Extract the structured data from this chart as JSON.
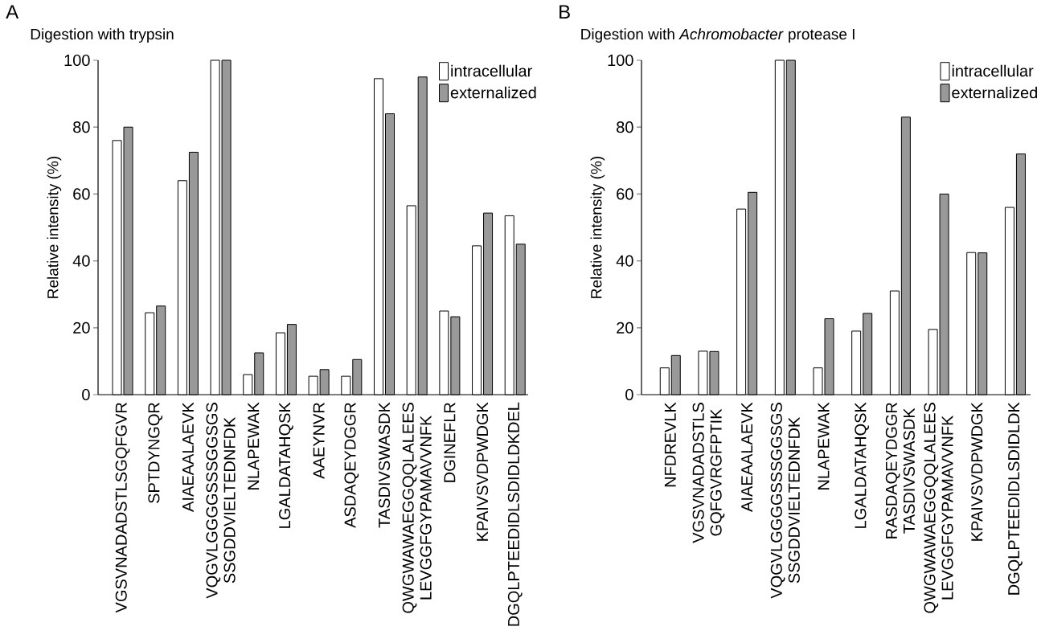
{
  "chart_data": [
    {
      "type": "bar",
      "annotations": [
        "A"
      ],
      "title": "Digestion with trypsin",
      "ylabel": "Relative intensity (%)",
      "categories": [
        "VGSVNADADSTLSGQFGVR",
        "SPTDYNGQR",
        "AIAEAALAEVK",
        "VQGVLGGGGSSSGGSGS SSGDDVIELTEDNFDK",
        "NLAPEWAK",
        "LGALDATAHQSK",
        "AAEYNVR",
        "ASDAQEYDGGR",
        "TASDIVSWASDK",
        "QWGWAWAEGGQQLALEES LEVGGFGYPAMAVVNFK",
        "DGINEFLR",
        "KPAIVSVDPWDGK",
        "DGQLPTEEDIDLSDIDLDKDEL"
      ],
      "series": [
        {
          "name": "intracellular",
          "color": "#ffffff",
          "values": [
            76,
            24.5,
            64,
            100,
            6,
            18.5,
            5.5,
            5.5,
            94.5,
            56.5,
            25,
            44.5,
            53.5
          ]
        },
        {
          "name": "externalized",
          "color": "#999999",
          "values": [
            80,
            26.5,
            72.5,
            100,
            12.5,
            21,
            7.5,
            10.5,
            84,
            95,
            23.3,
            54.3,
            45
          ]
        }
      ],
      "ylim": [
        0,
        100
      ],
      "yticks": [
        0,
        20,
        40,
        60,
        80,
        100
      ],
      "legend": "top right"
    },
    {
      "type": "bar",
      "annotations": [
        "B"
      ],
      "title": "Digestion with *Achromobacter* protease I",
      "ylabel": "Relative intensity (%)",
      "categories": [
        "NFDREVLK",
        "VGSVNADADSTLS GQFGVRGFPTIK",
        "AIAEAALAEVK",
        "VQGVLGGGGSSSGGSGS SSGDDVIELTEDNFDK",
        "NLAPEWAK",
        "LGALDATAHQSK",
        "RASDAQEYDGGR TASDIVSWASDK",
        "QWGWAWAEGGQQLALEES LEVGGFGYPAMAVVNFK",
        "KPAIVSVDPWDGK",
        "DGQLPTEEDIDLSDIDLDK"
      ],
      "series": [
        {
          "name": "intracellular",
          "color": "#ffffff",
          "values": [
            8,
            13,
            55.5,
            100,
            8,
            19,
            31,
            19.5,
            42.5,
            56
          ]
        },
        {
          "name": "externalized",
          "color": "#999999",
          "values": [
            11.7,
            12.9,
            60.5,
            100,
            22.7,
            24.3,
            83,
            60,
            42.4,
            72
          ]
        }
      ],
      "ylim": [
        0,
        100
      ],
      "yticks": [
        0,
        20,
        40,
        60,
        80,
        100
      ],
      "legend": "top right"
    }
  ]
}
